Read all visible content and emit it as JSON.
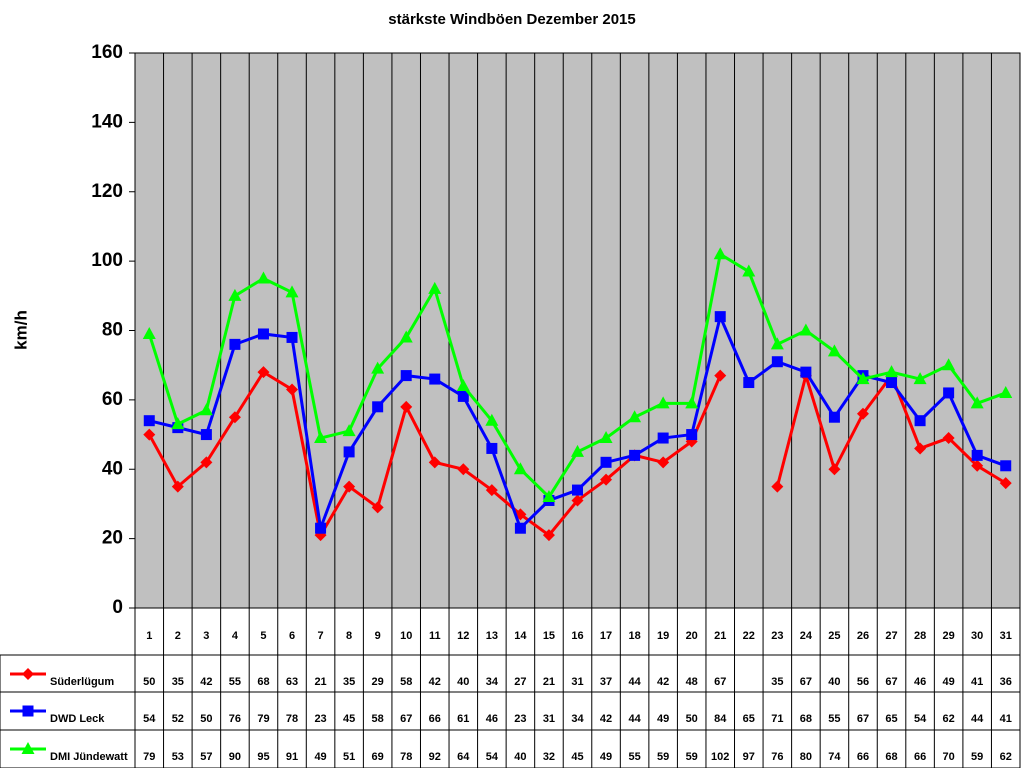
{
  "chart_data": {
    "type": "line",
    "title": "stärkste Windböen Dezember 2015",
    "y_label": "km/h",
    "categories": [
      "1",
      "2",
      "3",
      "4",
      "5",
      "6",
      "7",
      "8",
      "9",
      "10",
      "11",
      "12",
      "13",
      "14",
      "15",
      "16",
      "17",
      "18",
      "19",
      "20",
      "21",
      "22",
      "23",
      "24",
      "25",
      "26",
      "27",
      "28",
      "29",
      "30",
      "31"
    ],
    "ylim": [
      0,
      160
    ],
    "yticks": [
      0,
      20,
      40,
      60,
      80,
      100,
      120,
      140,
      160
    ],
    "background": "#c0c0c0",
    "series": [
      {
        "name": "Süderlügum",
        "color": "#ff0000",
        "marker": "diamond",
        "values": [
          50,
          35,
          42,
          55,
          68,
          63,
          21,
          35,
          29,
          58,
          42,
          40,
          34,
          27,
          21,
          31,
          37,
          44,
          42,
          48,
          67,
          null,
          35,
          67,
          40,
          56,
          67,
          46,
          49,
          41,
          36
        ]
      },
      {
        "name": "DWD Leck",
        "color": "#0000ff",
        "marker": "square",
        "values": [
          54,
          52,
          50,
          76,
          79,
          78,
          23,
          45,
          58,
          67,
          66,
          61,
          46,
          23,
          31,
          34,
          42,
          44,
          49,
          50,
          84,
          65,
          71,
          68,
          55,
          67,
          65,
          54,
          62,
          44,
          41
        ]
      },
      {
        "name": "DMI Jündewatt",
        "color": "#00ff00",
        "marker": "triangle",
        "values": [
          79,
          53,
          57,
          90,
          95,
          91,
          49,
          51,
          69,
          78,
          92,
          64,
          54,
          40,
          32,
          45,
          49,
          55,
          59,
          59,
          102,
          97,
          76,
          80,
          74,
          66,
          68,
          66,
          70,
          59,
          62
        ]
      }
    ]
  }
}
